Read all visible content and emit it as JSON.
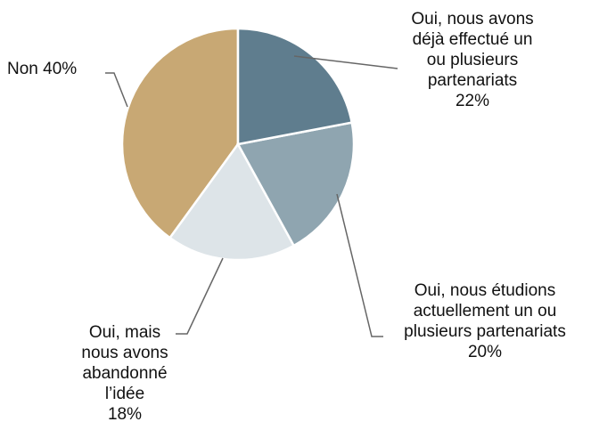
{
  "chart_data": {
    "type": "pie",
    "categories": [
      "Oui, nous avons déjà effectué un ou plusieurs partenariats",
      "Oui, nous étudions actuellement un ou plusieurs partenariats",
      "Oui, mais nous avons abandonné l’idée",
      "Non"
    ],
    "values": [
      22,
      20,
      18,
      40
    ],
    "value_labels": [
      "22%",
      "20%",
      "18%",
      "40%"
    ],
    "colors": [
      "#5f7d8e",
      "#8fa5b0",
      "#dde4e8",
      "#c8a874"
    ]
  }
}
